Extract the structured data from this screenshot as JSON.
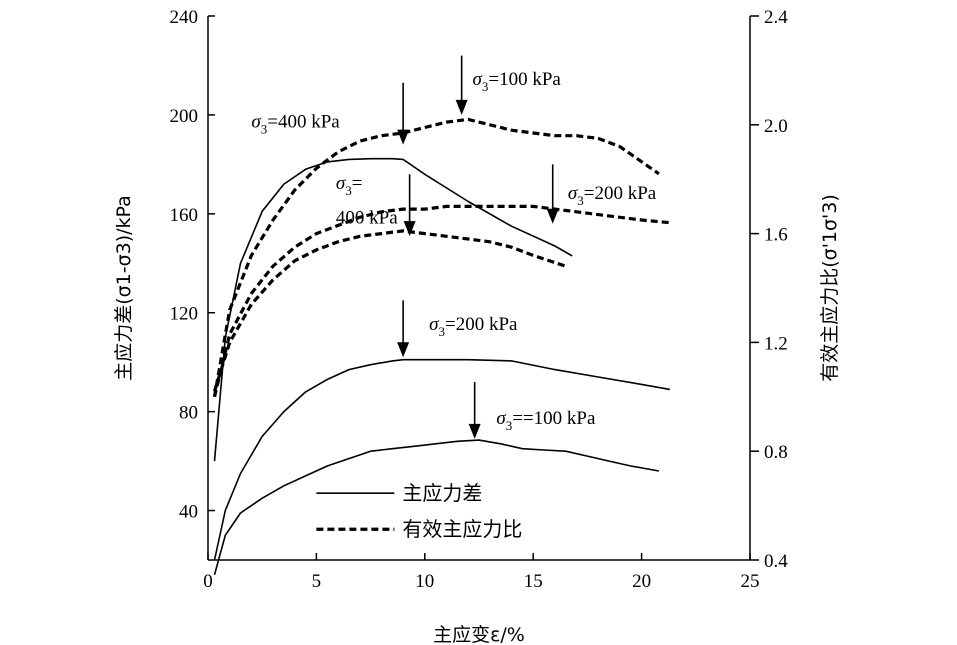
{
  "chart_data": {
    "type": "line",
    "x_axis": {
      "label": "主应变ε/%",
      "range": [
        0,
        25
      ],
      "ticks": [
        0,
        5,
        10,
        15,
        20,
        25
      ]
    },
    "y_left": {
      "label": "主应力差(σ1-σ3)/kPa",
      "range": [
        20,
        240
      ],
      "ticks": [
        40,
        80,
        120,
        160,
        200,
        240
      ]
    },
    "y_right": {
      "label": "有效主应力比(σ'1σ'3)",
      "range": [
        0.4,
        2.4
      ],
      "ticks": [
        "0.4",
        "0.8",
        "1.2",
        "1.6",
        "2.0",
        "2.4"
      ]
    },
    "legend": [
      {
        "label": "主应力差",
        "style": "solid"
      },
      {
        "label": "有效主应力比",
        "style": "dashed"
      }
    ],
    "series": [
      {
        "group": "deviator",
        "axis": "left",
        "style": "solid",
        "x": [
          0.3,
          0.8,
          1.5,
          2.5,
          3.5,
          4.5,
          5.5,
          6.5,
          7.5,
          8.5,
          9.0,
          10.0,
          12.0,
          14.0,
          16.0,
          16.8
        ],
        "y": [
          60,
          110,
          140,
          161,
          172,
          178,
          181,
          182,
          182.3,
          182.3,
          182,
          176,
          165,
          155,
          147,
          143
        ]
      },
      {
        "group": "deviator",
        "axis": "left",
        "style": "solid",
        "x": [
          0.3,
          0.8,
          1.5,
          2.5,
          3.5,
          4.5,
          5.5,
          6.5,
          7.5,
          8.5,
          9.0,
          10.0,
          12.0,
          14.0,
          16.0,
          18.0,
          20.0,
          21.3
        ],
        "y": [
          20,
          40,
          55,
          70,
          80,
          88,
          93,
          97,
          99,
          100.5,
          101,
          101,
          101,
          100.5,
          97,
          94,
          91,
          89
        ]
      },
      {
        "group": "deviator",
        "axis": "left",
        "style": "solid",
        "x": [
          0.3,
          0.8,
          1.5,
          2.5,
          3.5,
          4.5,
          5.5,
          6.5,
          7.5,
          8.5,
          9.5,
          10.5,
          11.5,
          12.5,
          13.5,
          14.5,
          15.5,
          16.5,
          17.5,
          18.5,
          19.5,
          20.8
        ],
        "y": [
          14,
          30,
          39,
          45,
          50,
          54,
          58,
          61,
          64,
          65,
          66,
          67,
          68,
          68.5,
          67,
          65,
          64.5,
          64,
          62,
          60,
          58,
          56
        ]
      },
      {
        "group": "ratio",
        "axis": "right",
        "style": "dashed",
        "x": [
          0.3,
          1.0,
          2.0,
          3.0,
          4.0,
          5.0,
          6.0,
          7.0,
          8.0,
          9.0,
          10.0,
          11.0,
          12.0,
          13.0,
          14.0,
          15.0,
          16.0,
          17.0,
          18.0,
          19.0,
          20.8
        ],
        "y": [
          1.0,
          1.32,
          1.52,
          1.65,
          1.76,
          1.84,
          1.9,
          1.94,
          1.96,
          1.97,
          1.99,
          2.01,
          2.02,
          2.0,
          1.98,
          1.97,
          1.96,
          1.96,
          1.95,
          1.92,
          1.82
        ]
      },
      {
        "group": "ratio",
        "axis": "right",
        "style": "dashed",
        "x": [
          0.3,
          1.0,
          2.0,
          3.0,
          4.0,
          5.0,
          6.0,
          7.0,
          8.0,
          9.0,
          10.0,
          11.0,
          12.0,
          13.0,
          14.0,
          15.0,
          16.0,
          17.0,
          18.0,
          19.0,
          20.0,
          21.3
        ],
        "y": [
          1.0,
          1.23,
          1.38,
          1.48,
          1.55,
          1.6,
          1.63,
          1.66,
          1.68,
          1.69,
          1.69,
          1.7,
          1.7,
          1.7,
          1.7,
          1.7,
          1.69,
          1.68,
          1.67,
          1.66,
          1.65,
          1.64
        ]
      },
      {
        "group": "ratio",
        "axis": "right",
        "style": "dashed",
        "x": [
          0.3,
          1.0,
          2.0,
          3.0,
          4.0,
          5.0,
          6.0,
          7.0,
          8.0,
          9.0,
          10.0,
          11.0,
          12.0,
          13.0,
          14.0,
          15.0,
          16.5
        ],
        "y": [
          1.02,
          1.2,
          1.34,
          1.43,
          1.5,
          1.54,
          1.57,
          1.59,
          1.6,
          1.61,
          1.6,
          1.59,
          1.58,
          1.57,
          1.55,
          1.52,
          1.48
        ]
      }
    ],
    "annotations": [
      {
        "text": "σ3=100 kPa",
        "label_axis": "left",
        "label_x": 12.2,
        "label_y": 212,
        "arrow_x": 11.7,
        "arrow_y0": 224,
        "arrow_y1": 200
      },
      {
        "text": "σ3=400 kPa",
        "label_axis": "left",
        "label_x": 2.0,
        "label_y": 195,
        "arrow_x": 9.0,
        "arrow_y0": 213,
        "arrow_y1": 188
      },
      {
        "text": "σ3=",
        "label_axis": "left",
        "label_x": 5.9,
        "label_y": 170,
        "arrow_x": null
      },
      {
        "text": "400 kPa",
        "label_axis": "left",
        "label_x": 5.9,
        "label_y": 156,
        "arrow_x": 9.3,
        "arrow_y0": 176,
        "arrow_y1": 151
      },
      {
        "text": "σ3=200 kPa",
        "label_axis": "left",
        "label_x": 16.6,
        "label_y": 166,
        "arrow_x": 15.9,
        "arrow_y0": 180,
        "arrow_y1": 156
      },
      {
        "text": "σ3=200 kPa",
        "label_axis": "left",
        "label_x": 10.2,
        "label_y": 113,
        "arrow_x": 9.0,
        "arrow_y0": 125,
        "arrow_y1": 102
      },
      {
        "text": "σ3==100 kPa",
        "label_axis": "left",
        "label_x": 13.3,
        "label_y": 75,
        "arrow_x": 12.3,
        "arrow_y0": 92,
        "arrow_y1": 69
      }
    ],
    "colors": {
      "line": "#000000",
      "background": "#ffffff"
    }
  }
}
